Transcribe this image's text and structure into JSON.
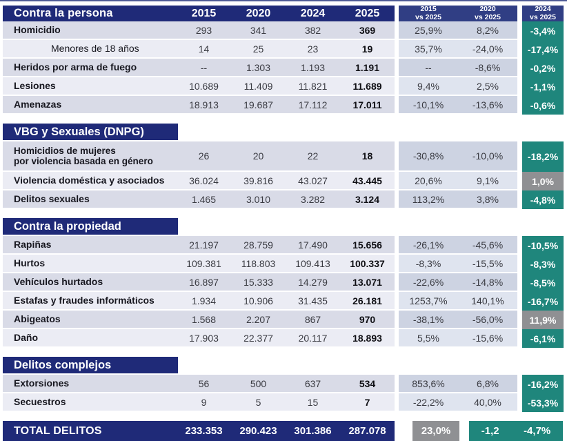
{
  "colors": {
    "navy": "#1f2a78",
    "navy_light": "#303e84",
    "teal": "#1f867c",
    "gray": "#8f9093",
    "row_dark": "#d9dbe7",
    "row_light": "#ebecf4",
    "vs_dark": "#cdd3e2",
    "vs_light": "#dfe4ef"
  },
  "chart_data": {
    "type": "table",
    "columns": [
      "2015",
      "2020",
      "2024",
      "2025"
    ],
    "vs_columns": [
      {
        "line1": "2015",
        "line2": "vs 2025"
      },
      {
        "line1": "2020",
        "line2": "vs 2025"
      },
      {
        "line1": "2024",
        "line2": "vs 2025"
      }
    ],
    "sections": [
      {
        "title": "Contra la persona",
        "rows": [
          {
            "label": "Homicidio",
            "values": [
              "293",
              "341",
              "382",
              "369"
            ],
            "vs": [
              "25,9%",
              "8,2%"
            ],
            "delta": "-3,4%",
            "delta_color": "teal"
          },
          {
            "label": "Menores de 18 años",
            "indent": true,
            "bold": false,
            "values": [
              "14",
              "25",
              "23",
              "19"
            ],
            "vs": [
              "35,7%",
              "-24,0%"
            ],
            "delta": "-17,4%",
            "delta_color": "teal"
          },
          {
            "label": "Heridos por arma de fuego",
            "values": [
              "--",
              "1.303",
              "1.193",
              "1.191"
            ],
            "vs": [
              "--",
              "-8,6%"
            ],
            "delta": "-0,2%",
            "delta_color": "teal"
          },
          {
            "label": "Lesiones",
            "values": [
              "10.689",
              "11.409",
              "11.821",
              "11.689"
            ],
            "vs": [
              "9,4%",
              "2,5%"
            ],
            "delta": "-1,1%",
            "delta_color": "teal"
          },
          {
            "label": "Amenazas",
            "values": [
              "18.913",
              "19.687",
              "17.112",
              "17.011"
            ],
            "vs": [
              "-10,1%",
              "-13,6%"
            ],
            "delta": "-0,6%",
            "delta_color": "teal"
          }
        ]
      },
      {
        "title": "VBG y Sexuales (DNPG)",
        "rows": [
          {
            "label_lines": [
              "Homicidios de mujeres",
              "por violencia basada en género"
            ],
            "tall": true,
            "values": [
              "26",
              "20",
              "22",
              "18"
            ],
            "vs": [
              "-30,8%",
              "-10,0%"
            ],
            "delta": "-18,2%",
            "delta_color": "teal"
          },
          {
            "label": "Violencia doméstica y asociados",
            "values": [
              "36.024",
              "39.816",
              "43.027",
              "43.445"
            ],
            "vs": [
              "20,6%",
              "9,1%"
            ],
            "delta": "1,0%",
            "delta_color": "gray"
          },
          {
            "label": "Delitos sexuales",
            "values": [
              "1.465",
              "3.010",
              "3.282",
              "3.124"
            ],
            "vs": [
              "113,2%",
              "3,8%"
            ],
            "delta": "-4,8%",
            "delta_color": "teal"
          }
        ]
      },
      {
        "title": "Contra la propiedad",
        "rows": [
          {
            "label": "Rapiñas",
            "values": [
              "21.197",
              "28.759",
              "17.490",
              "15.656"
            ],
            "vs": [
              "-26,1%",
              "-45,6%"
            ],
            "delta": "-10,5%",
            "delta_color": "teal"
          },
          {
            "label": "Hurtos",
            "values": [
              "109.381",
              "118.803",
              "109.413",
              "100.337"
            ],
            "vs": [
              "-8,3%",
              "-15,5%"
            ],
            "delta": "-8,3%",
            "delta_color": "teal"
          },
          {
            "label": "Vehículos hurtados",
            "values": [
              "16.897",
              "15.333",
              "14.279",
              "13.071"
            ],
            "vs": [
              "-22,6%",
              "-14,8%"
            ],
            "delta": "-8,5%",
            "delta_color": "teal"
          },
          {
            "label": "Estafas y fraudes informáticos",
            "values": [
              "1.934",
              "10.906",
              "31.435",
              "26.181"
            ],
            "vs": [
              "1253,7%",
              "140,1%"
            ],
            "delta": "-16,7%",
            "delta_color": "teal"
          },
          {
            "label": "Abigeatos",
            "values": [
              "1.568",
              "2.207",
              "867",
              "970"
            ],
            "vs": [
              "-38,1%",
              "-56,0%"
            ],
            "delta": "11,9%",
            "delta_color": "gray"
          },
          {
            "label": "Daño",
            "values": [
              "17.903",
              "22.377",
              "20.117",
              "18.893"
            ],
            "vs": [
              "5,5%",
              "-15,6%"
            ],
            "delta": "-6,1%",
            "delta_color": "teal"
          }
        ]
      },
      {
        "title": "Delitos complejos",
        "rows": [
          {
            "label": "Extorsiones",
            "values": [
              "56",
              "500",
              "637",
              "534"
            ],
            "vs": [
              "853,6%",
              "6,8%"
            ],
            "delta": "-16,2%",
            "delta_color": "teal"
          },
          {
            "label": "Secuestros",
            "values": [
              "9",
              "5",
              "15",
              "7"
            ],
            "vs": [
              "-22,2%",
              "40,0%"
            ],
            "delta": "-53,3%",
            "delta_color": "teal"
          }
        ]
      }
    ],
    "total": {
      "label": "TOTAL DELITOS",
      "values": [
        "233.353",
        "290.423",
        "301.386",
        "287.078"
      ],
      "vs_2015": "23,0%",
      "vs_2020": "-1,2",
      "vs_2024": "-4,7%"
    }
  }
}
